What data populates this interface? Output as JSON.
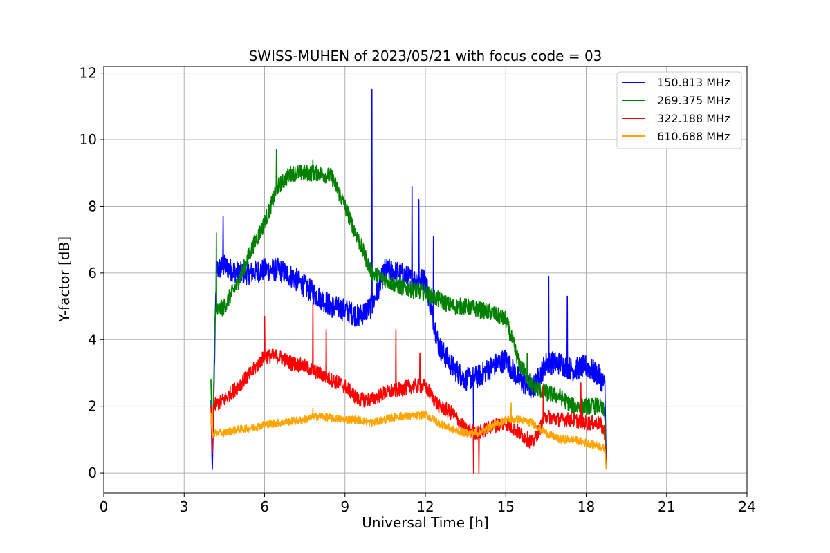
{
  "chart_data": {
    "type": "line",
    "title": "SWISS-MUHEN of 2023/05/21 with focus code = 03",
    "xlabel": "Universal Time [h]",
    "ylabel": "Y-factor [dB]",
    "xlim": [
      0,
      24
    ],
    "ylim": [
      -0.6,
      12.2
    ],
    "xticks": [
      0,
      3,
      6,
      9,
      12,
      15,
      18,
      21,
      24
    ],
    "yticks": [
      0,
      2,
      4,
      6,
      8,
      10,
      12
    ],
    "grid": true,
    "legend_position": "top-right",
    "series": [
      {
        "name": "150.813 MHz",
        "color": "#0000ff",
        "noise": 0.35,
        "x": [
          4.0,
          4.05,
          4.1,
          4.2,
          4.5,
          5.0,
          5.5,
          6.0,
          6.5,
          7.0,
          7.5,
          8.0,
          8.5,
          9.0,
          9.5,
          10.0,
          10.5,
          11.0,
          11.5,
          12.0,
          12.5,
          13.0,
          13.5,
          14.0,
          14.5,
          15.0,
          15.5,
          16.0,
          16.5,
          17.0,
          17.5,
          18.0,
          18.5,
          18.7,
          18.75
        ],
        "y": [
          2.2,
          0.0,
          2.0,
          6.1,
          6.2,
          6.0,
          6.0,
          6.1,
          6.1,
          5.9,
          5.6,
          5.3,
          5.0,
          4.9,
          4.7,
          5.0,
          6.1,
          6.0,
          5.8,
          5.8,
          3.8,
          3.2,
          2.8,
          2.9,
          3.2,
          3.4,
          2.8,
          2.5,
          3.3,
          3.3,
          3.1,
          3.2,
          2.9,
          2.6,
          0.2
        ],
        "spikes": [
          [
            4.45,
            7.7
          ],
          [
            10.0,
            11.5
          ],
          [
            11.5,
            8.6
          ],
          [
            11.75,
            8.2
          ],
          [
            12.3,
            7.1
          ],
          [
            16.6,
            5.9
          ],
          [
            17.3,
            5.3
          ],
          [
            13.8,
            0.6
          ]
        ]
      },
      {
        "name": "269.375 MHz",
        "color": "#008000",
        "noise": 0.25,
        "x": [
          4.0,
          4.05,
          4.1,
          4.15,
          4.5,
          5.0,
          5.5,
          6.0,
          6.5,
          7.0,
          7.5,
          8.0,
          8.5,
          9.0,
          9.5,
          10.0,
          10.5,
          11.0,
          11.5,
          12.0,
          12.5,
          13.0,
          13.5,
          14.0,
          14.5,
          15.0,
          15.5,
          16.0,
          16.5,
          17.0,
          17.5,
          18.0,
          18.5,
          18.7,
          18.75
        ],
        "y": [
          2.8,
          0.8,
          2.5,
          4.8,
          5.0,
          5.7,
          6.7,
          7.5,
          8.6,
          9.0,
          9.0,
          9.0,
          8.9,
          8.0,
          7.0,
          6.0,
          5.8,
          5.6,
          5.5,
          5.4,
          5.2,
          5.0,
          5.0,
          4.9,
          4.8,
          4.6,
          3.3,
          2.6,
          2.4,
          2.3,
          2.0,
          2.0,
          2.0,
          1.8,
          0.2
        ],
        "spikes": [
          [
            4.2,
            7.2
          ],
          [
            6.45,
            9.7
          ],
          [
            7.8,
            9.4
          ],
          [
            15.8,
            3.6
          ]
        ]
      },
      {
        "name": "322.188 MHz",
        "color": "#ff0000",
        "noise": 0.22,
        "x": [
          4.0,
          4.05,
          4.1,
          4.5,
          5.0,
          5.5,
          6.0,
          6.5,
          7.0,
          7.5,
          8.0,
          8.5,
          9.0,
          9.5,
          10.0,
          10.5,
          11.0,
          11.5,
          12.0,
          12.5,
          13.0,
          13.5,
          14.0,
          14.5,
          15.0,
          15.5,
          16.0,
          16.5,
          17.0,
          17.5,
          18.0,
          18.5,
          18.7,
          18.75
        ],
        "y": [
          2.0,
          0.5,
          2.0,
          2.2,
          2.6,
          3.0,
          3.5,
          3.5,
          3.3,
          3.2,
          3.0,
          2.8,
          2.6,
          2.2,
          2.2,
          2.4,
          2.5,
          2.6,
          2.6,
          2.0,
          1.8,
          1.3,
          1.2,
          1.4,
          1.5,
          1.2,
          0.9,
          1.7,
          1.6,
          1.6,
          1.5,
          1.5,
          1.2,
          0.1
        ],
        "spikes": [
          [
            6.0,
            4.7
          ],
          [
            7.8,
            5.1
          ],
          [
            8.3,
            4.3
          ],
          [
            10.9,
            4.3
          ],
          [
            11.8,
            3.6
          ],
          [
            13.8,
            0.0
          ],
          [
            14.0,
            0.0
          ],
          [
            16.4,
            2.6
          ],
          [
            17.8,
            2.7
          ]
        ]
      },
      {
        "name": "610.688 MHz",
        "color": "#ffa500",
        "noise": 0.12,
        "x": [
          4.0,
          4.05,
          4.1,
          4.5,
          5.0,
          5.5,
          6.0,
          6.5,
          7.0,
          7.5,
          8.0,
          8.5,
          9.0,
          9.5,
          10.0,
          10.5,
          11.0,
          11.5,
          12.0,
          12.5,
          13.0,
          13.5,
          14.0,
          14.5,
          15.0,
          15.5,
          16.0,
          16.5,
          17.0,
          17.5,
          18.0,
          18.5,
          18.7,
          18.75
        ],
        "y": [
          1.8,
          1.0,
          1.2,
          1.2,
          1.3,
          1.35,
          1.45,
          1.5,
          1.55,
          1.6,
          1.7,
          1.65,
          1.6,
          1.6,
          1.5,
          1.6,
          1.7,
          1.7,
          1.75,
          1.5,
          1.3,
          1.2,
          1.2,
          1.4,
          1.6,
          1.6,
          1.5,
          1.2,
          1.0,
          1.0,
          0.9,
          0.8,
          0.7,
          0.1
        ],
        "spikes": [
          [
            4.05,
            2.0
          ],
          [
            7.8,
            1.95
          ],
          [
            15.2,
            2.1
          ]
        ]
      }
    ]
  }
}
